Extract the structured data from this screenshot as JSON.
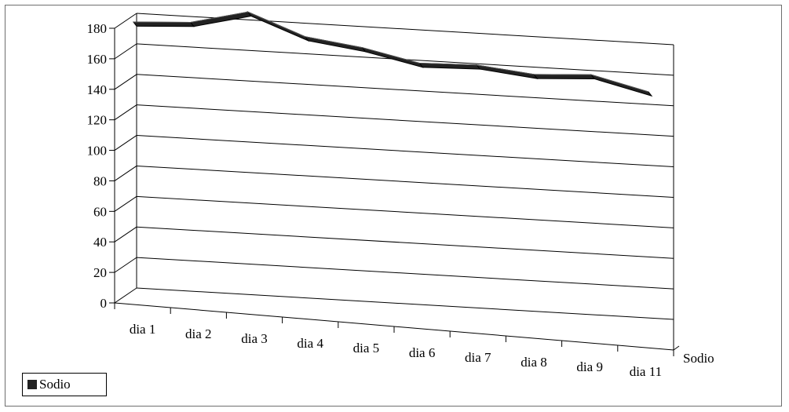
{
  "chart_data": {
    "type": "line",
    "style": "3d-ribbon",
    "categories": [
      "dia 1",
      "dia 2",
      "dia 3",
      "dia 4",
      "dia 5",
      "dia 6",
      "dia 7",
      "dia 8",
      "dia 9",
      "dia 11"
    ],
    "series": [
      {
        "name": "Sodio",
        "values": [
          168,
          170,
          179,
          165,
          160,
          152,
          153,
          149,
          151,
          142
        ]
      }
    ],
    "y_ticks": [
      "0",
      "20",
      "40",
      "60",
      "80",
      "100",
      "120",
      "140",
      "160",
      "180"
    ],
    "depth_label": "Sodio",
    "ylim": [
      0,
      180
    ],
    "grid": true,
    "legend_position": "bottom-left",
    "colors": {
      "series": "#222222",
      "ribbon_edge": "#000000",
      "grid": "#000000"
    }
  }
}
